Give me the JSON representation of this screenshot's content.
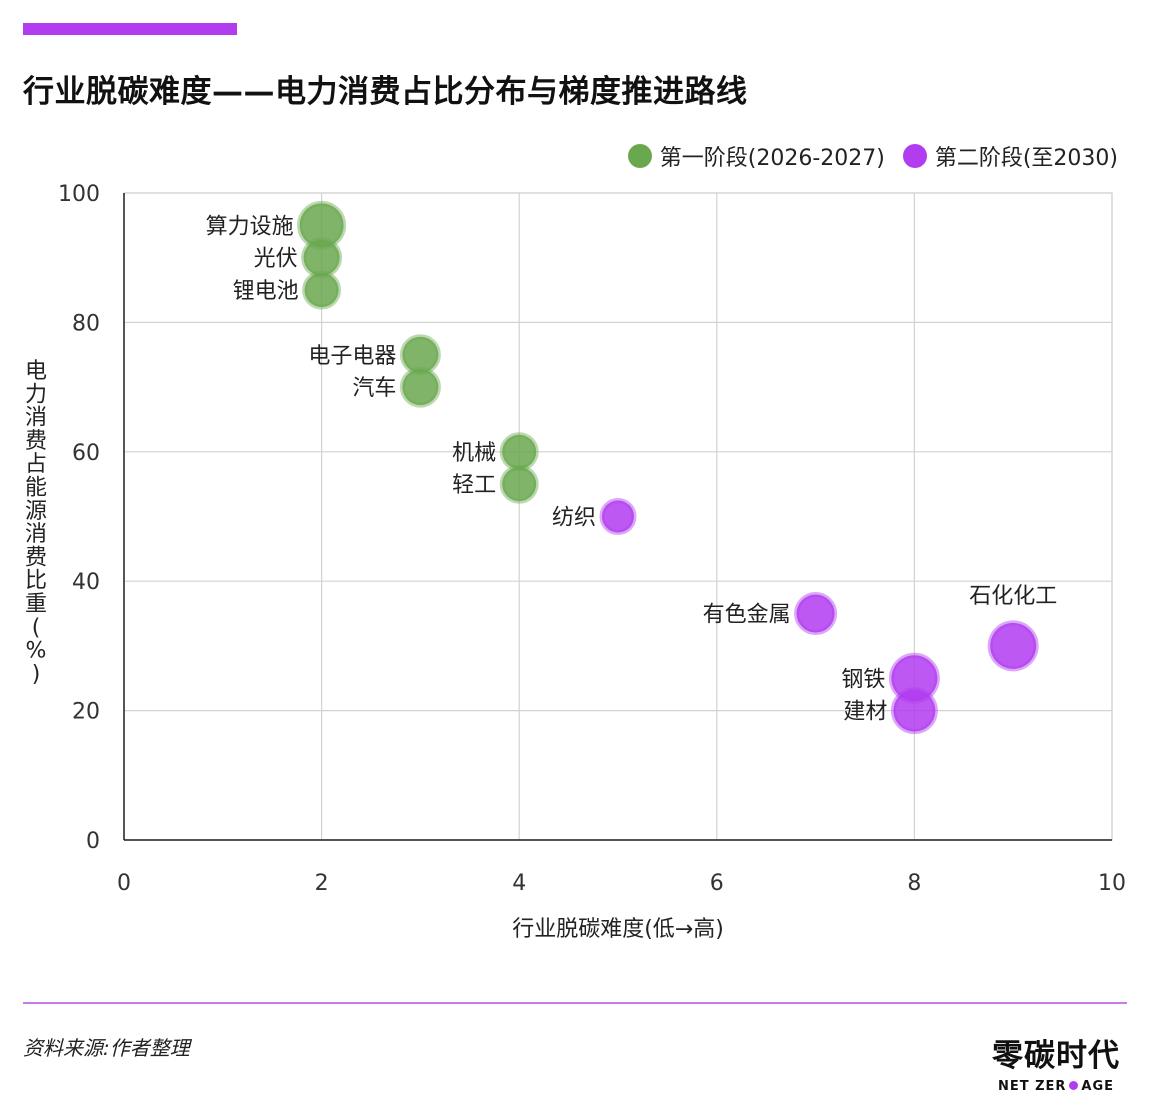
{
  "header": {
    "title": "行业脱碳难度——电力消费占比分布与梯度推进路线"
  },
  "colors": {
    "phase1": "#6aa84f",
    "phase2": "#b13cf0",
    "accent": "#b13cf0"
  },
  "chart_data": {
    "type": "scatter",
    "xlabel": "行业脱碳难度(低→高)",
    "ylabel": "电力消费占能源消费比重(%)",
    "xlim": [
      0,
      10
    ],
    "ylim": [
      0,
      100
    ],
    "xticks": [
      "0",
      "2",
      "4",
      "6",
      "8",
      "10"
    ],
    "yticks": [
      "0",
      "20",
      "40",
      "60",
      "80",
      "100"
    ],
    "grid": true,
    "legend_position": "top-right",
    "series": [
      {
        "name": "第一阶段(2026-2027)",
        "color": "#6aa84f",
        "points": [
          {
            "label": "算力设施",
            "x": 2,
            "y": 95,
            "size": 22
          },
          {
            "label": "光伏",
            "x": 2,
            "y": 90,
            "size": 18
          },
          {
            "label": "锂电池",
            "x": 2,
            "y": 85,
            "size": 17
          },
          {
            "label": "电子电器",
            "x": 3,
            "y": 75,
            "size": 18
          },
          {
            "label": "汽车",
            "x": 3,
            "y": 70,
            "size": 18
          },
          {
            "label": "机械",
            "x": 4,
            "y": 60,
            "size": 17
          },
          {
            "label": "轻工",
            "x": 4,
            "y": 55,
            "size": 17
          }
        ]
      },
      {
        "name": "第二阶段(至2030)",
        "color": "#b13cf0",
        "points": [
          {
            "label": "纺织",
            "x": 5,
            "y": 50,
            "size": 16
          },
          {
            "label": "有色金属",
            "x": 7,
            "y": 35,
            "size": 19
          },
          {
            "label": "石化化工",
            "x": 9,
            "y": 30,
            "size": 23
          },
          {
            "label": "钢铁",
            "x": 8,
            "y": 25,
            "size": 23
          },
          {
            "label": "建材",
            "x": 8,
            "y": 20,
            "size": 21
          }
        ]
      }
    ]
  },
  "footer": {
    "source": "资料来源:作者整理",
    "logo_cn": "零碳时代",
    "logo_en_left": "NET ZER",
    "logo_en_right": "AGE"
  }
}
